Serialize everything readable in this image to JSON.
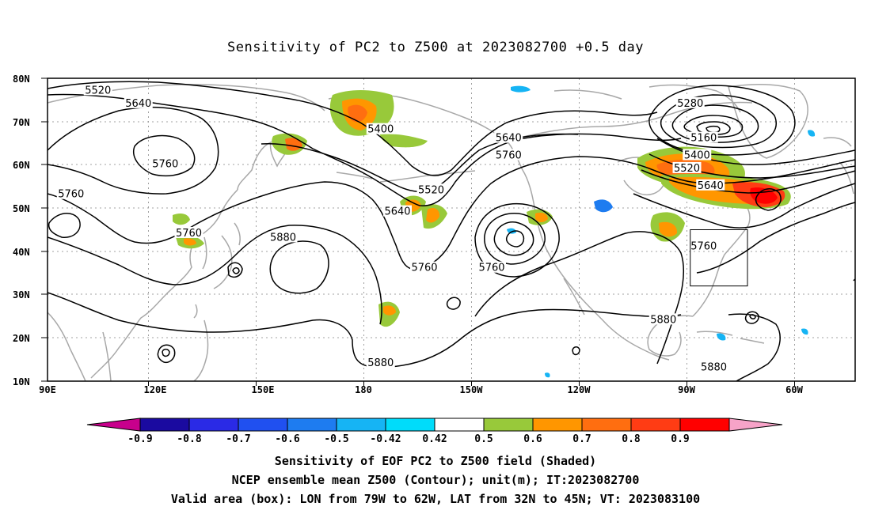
{
  "title": "Sensitivity of PC2 to Z500 at 2023082700 +0.5 day",
  "map": {
    "projection": "cylindrical equidistant",
    "lon_range": [
      90,
      330
    ],
    "lat_range": [
      10,
      80
    ],
    "lat_labels": [
      "80N",
      "70N",
      "60N",
      "50N",
      "40N",
      "30N",
      "20N",
      "10N"
    ],
    "lon_labels": [
      "90E",
      "120E",
      "150E",
      "180",
      "150W",
      "120W",
      "90W",
      "60W"
    ],
    "contour_interval_m": 60,
    "contour_labels": [
      {
        "text": "5520",
        "lon": 105,
        "lat": 77
      },
      {
        "text": "5640",
        "lon": 117,
        "lat": 74
      },
      {
        "text": "5760",
        "lon": 125,
        "lat": 60
      },
      {
        "text": "5760",
        "lon": 97,
        "lat": 53
      },
      {
        "text": "5760",
        "lon": 132,
        "lat": 44
      },
      {
        "text": "5880",
        "lon": 160,
        "lat": 43
      },
      {
        "text": "5400",
        "lon": 189,
        "lat": 68
      },
      {
        "text": "5520",
        "lon": 204,
        "lat": 54
      },
      {
        "text": "5640",
        "lon": 194,
        "lat": 49
      },
      {
        "text": "5760",
        "lon": 202,
        "lat": 36
      },
      {
        "text": "5640",
        "lon": 227,
        "lat": 66
      },
      {
        "text": "5760",
        "lon": 227,
        "lat": 62
      },
      {
        "text": "5760",
        "lon": 222,
        "lat": 36
      },
      {
        "text": "5880",
        "lon": 189,
        "lat": 14
      },
      {
        "text": "5280",
        "lon": 281,
        "lat": 74
      },
      {
        "text": "5160",
        "lon": 285,
        "lat": 66
      },
      {
        "text": "5400",
        "lon": 283,
        "lat": 62
      },
      {
        "text": "5520",
        "lon": 280,
        "lat": 59
      },
      {
        "text": "5640",
        "lon": 287,
        "lat": 55
      },
      {
        "text": "5760",
        "lon": 285,
        "lat": 41
      },
      {
        "text": "5880",
        "lon": 273,
        "lat": 24
      },
      {
        "text": "5880",
        "lon": 288,
        "lat": 13
      }
    ],
    "valid_area_box": {
      "lon_min": 281,
      "lon_max": 298,
      "lat_min": 32,
      "lat_max": 45
    },
    "colors": {
      "coast": "#a8a8a8",
      "grid": "#a0a0a0",
      "contour": "#000000"
    }
  },
  "colorbar": {
    "labels": [
      "-0.9",
      "-0.8",
      "-0.7",
      "-0.6",
      "-0.5",
      "-0.42",
      "0.42",
      "0.5",
      "0.6",
      "0.7",
      "0.8",
      "0.9"
    ],
    "colors": [
      "#c8008c",
      "#1a0aa0",
      "#2a2ae6",
      "#2050f0",
      "#1e7cf0",
      "#16b4f4",
      "#00dcfa",
      "#ffffff",
      "#98c93a",
      "#ff9600",
      "#ff6e10",
      "#ff3c14",
      "#ff0000",
      "#f7a3c8"
    ]
  },
  "footer": [
    "Sensitivity of EOF PC2 to Z500 field (Shaded)",
    "NCEP ensemble mean Z500 (Contour); unit(m); IT:2023082700",
    "Valid area (box): LON from 79W to 62W, LAT from 32N to 45N; VT: 2023083100"
  ]
}
